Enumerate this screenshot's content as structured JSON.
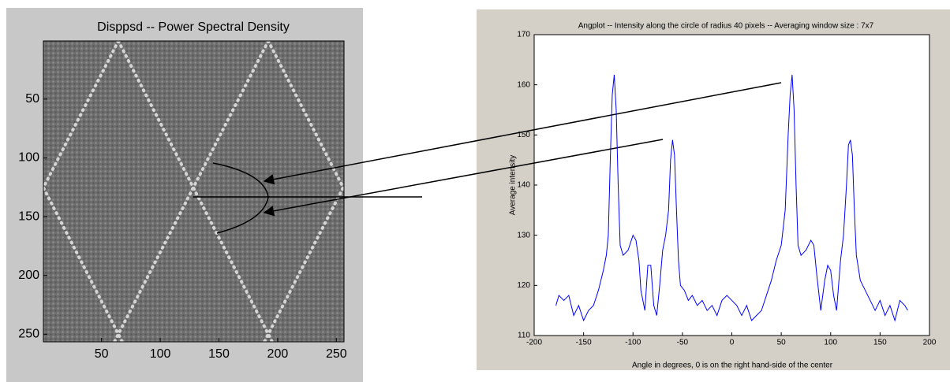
{
  "chart_data": [
    {
      "type": "image",
      "title": "Disppsd -- Power Spectral Density",
      "xlim": [
        0.5,
        256.5
      ],
      "ylim": [
        0.5,
        256.5
      ],
      "yreverse": true,
      "xticks": [
        50,
        100,
        150,
        200,
        250
      ],
      "yticks": [
        50,
        100,
        150,
        200,
        250
      ]
    },
    {
      "type": "line",
      "title": "Angplot -- Intensity along the circle of radius 40 pixels -- Averaging window size : 7x7",
      "xlabel": "Angle in degrees, 0 is on the right hand-side of the center",
      "ylabel": "Average intensity",
      "xlim": [
        -200,
        200
      ],
      "ylim": [
        110,
        170
      ],
      "xticks": [
        -200,
        -150,
        -100,
        -50,
        0,
        50,
        100,
        150,
        200
      ],
      "yticks": [
        110,
        120,
        130,
        140,
        150,
        160,
        170
      ],
      "color": "#0000ff",
      "x": [
        -178,
        -175,
        -170,
        -165,
        -160,
        -155,
        -150,
        -145,
        -140,
        -135,
        -130,
        -127,
        -125,
        -123,
        -121,
        -119,
        -117,
        -115,
        -113,
        -110,
        -105,
        -100,
        -97,
        -94,
        -92,
        -88,
        -85,
        -82,
        -79,
        -76,
        -73,
        -70,
        -67,
        -64,
        -62,
        -60,
        -58,
        -56,
        -54,
        -52,
        -48,
        -44,
        -40,
        -35,
        -30,
        -25,
        -20,
        -15,
        -10,
        -5,
        0,
        5,
        10,
        15,
        20,
        25,
        30,
        35,
        40,
        45,
        50,
        54,
        57,
        59,
        61,
        63,
        65,
        67,
        70,
        75,
        80,
        83,
        86,
        90,
        94,
        97,
        100,
        103,
        106,
        110,
        113,
        116,
        118,
        120,
        122,
        124,
        126,
        130,
        135,
        140,
        145,
        150,
        155,
        160,
        165,
        170,
        175,
        178
      ],
      "values": [
        116,
        118,
        117,
        118,
        114,
        116,
        113,
        115,
        116,
        119,
        123,
        126,
        130,
        145,
        158,
        162,
        155,
        140,
        128,
        126,
        127,
        130,
        129,
        125,
        119,
        115,
        124,
        124,
        116,
        114,
        120,
        127,
        130,
        135,
        145,
        149,
        146,
        135,
        125,
        120,
        119,
        117,
        118,
        116,
        117,
        115,
        116,
        114,
        117,
        118,
        117,
        116,
        114,
        116,
        113,
        114,
        115,
        118,
        121,
        125,
        128,
        135,
        150,
        158,
        162,
        155,
        140,
        128,
        126,
        127,
        129,
        128,
        122,
        115,
        121,
        124,
        123,
        118,
        115,
        125,
        130,
        140,
        148,
        149,
        146,
        135,
        126,
        121,
        119,
        117,
        115,
        117,
        114,
        116,
        113,
        117,
        116,
        115
      ]
    }
  ]
}
